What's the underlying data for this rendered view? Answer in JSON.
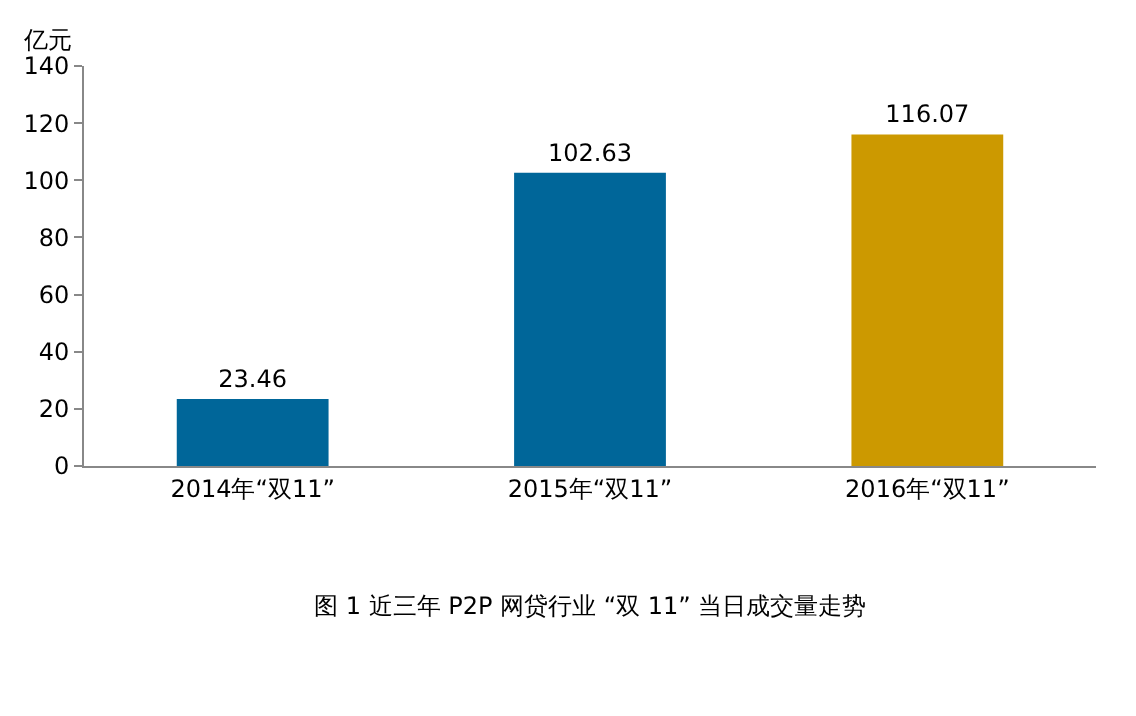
{
  "chart_data": {
    "type": "bar",
    "title": "图 1 近三年 P2P 网贷行业 “双 11” 当日成交量走势",
    "ylabel": "亿元",
    "categories": [
      "2014年“双11”",
      "2015年“双11”",
      "2016年“双11”"
    ],
    "values": [
      23.46,
      102.63,
      116.07
    ],
    "colors": [
      "#006699",
      "#006699",
      "#cc9900"
    ],
    "ylim": [
      0,
      140
    ],
    "yticks": [
      0,
      20,
      40,
      60,
      80,
      100,
      120,
      140
    ],
    "data_labels": true
  }
}
